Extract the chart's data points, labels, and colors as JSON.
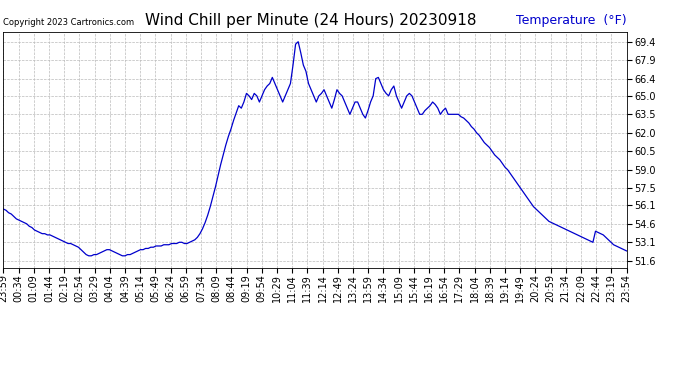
{
  "title": "Wind Chill per Minute (24 Hours) 20230918",
  "copyright": "Copyright 2023 Cartronics.com",
  "legend_label": "Temperature  (°F)",
  "yticks": [
    51.6,
    53.1,
    54.6,
    56.1,
    57.5,
    59.0,
    60.5,
    62.0,
    63.5,
    65.0,
    66.4,
    67.9,
    69.4
  ],
  "ylim": [
    51.0,
    70.2
  ],
  "line_color": "#0000cc",
  "background_color": "#ffffff",
  "grid_color": "#bbbbbb",
  "xtick_labels": [
    "23:59",
    "00:34",
    "01:09",
    "01:44",
    "02:19",
    "02:54",
    "03:29",
    "04:04",
    "04:39",
    "05:14",
    "05:49",
    "06:24",
    "06:59",
    "07:34",
    "08:09",
    "08:44",
    "09:19",
    "09:54",
    "10:29",
    "11:04",
    "11:39",
    "12:14",
    "12:49",
    "13:24",
    "13:59",
    "14:34",
    "15:09",
    "15:44",
    "16:19",
    "16:54",
    "17:29",
    "18:04",
    "18:39",
    "19:14",
    "19:49",
    "20:24",
    "20:59",
    "21:34",
    "22:09",
    "22:44",
    "23:19",
    "23:54"
  ],
  "data_y": [
    55.8,
    55.7,
    55.5,
    55.4,
    55.2,
    55.0,
    54.9,
    54.8,
    54.7,
    54.6,
    54.4,
    54.3,
    54.1,
    54.0,
    53.9,
    53.8,
    53.8,
    53.7,
    53.7,
    53.6,
    53.5,
    53.4,
    53.3,
    53.2,
    53.1,
    53.0,
    53.0,
    52.9,
    52.8,
    52.7,
    52.5,
    52.3,
    52.1,
    52.0,
    52.0,
    52.1,
    52.1,
    52.2,
    52.3,
    52.4,
    52.5,
    52.5,
    52.4,
    52.3,
    52.2,
    52.1,
    52.0,
    52.0,
    52.1,
    52.1,
    52.2,
    52.3,
    52.4,
    52.5,
    52.5,
    52.6,
    52.6,
    52.7,
    52.7,
    52.8,
    52.8,
    52.8,
    52.9,
    52.9,
    52.9,
    53.0,
    53.0,
    53.0,
    53.1,
    53.1,
    53.0,
    53.0,
    53.1,
    53.2,
    53.3,
    53.5,
    53.8,
    54.2,
    54.7,
    55.3,
    56.0,
    56.8,
    57.6,
    58.5,
    59.4,
    60.2,
    61.0,
    61.7,
    62.3,
    63.0,
    63.6,
    64.2,
    64.0,
    64.5,
    65.2,
    65.0,
    64.7,
    65.2,
    65.0,
    64.5,
    65.0,
    65.5,
    65.8,
    66.0,
    66.5,
    66.0,
    65.5,
    65.0,
    64.5,
    65.0,
    65.5,
    66.0,
    67.5,
    69.2,
    69.4,
    68.5,
    67.5,
    67.0,
    66.0,
    65.5,
    65.0,
    64.5,
    65.0,
    65.2,
    65.5,
    65.0,
    64.5,
    64.0,
    64.7,
    65.5,
    65.2,
    65.0,
    64.5,
    64.0,
    63.5,
    64.0,
    64.5,
    64.5,
    64.0,
    63.5,
    63.2,
    63.8,
    64.5,
    65.0,
    66.4,
    66.5,
    66.0,
    65.5,
    65.2,
    65.0,
    65.5,
    65.8,
    65.0,
    64.5,
    64.0,
    64.5,
    65.0,
    65.2,
    65.0,
    64.5,
    64.0,
    63.5,
    63.5,
    63.8,
    64.0,
    64.2,
    64.5,
    64.3,
    64.0,
    63.5,
    63.8,
    64.0,
    63.5,
    63.5,
    63.5,
    63.5,
    63.5,
    63.3,
    63.2,
    63.0,
    62.8,
    62.5,
    62.3,
    62.0,
    61.8,
    61.5,
    61.2,
    61.0,
    60.8,
    60.5,
    60.2,
    60.0,
    59.8,
    59.5,
    59.2,
    59.0,
    58.7,
    58.4,
    58.1,
    57.8,
    57.5,
    57.2,
    56.9,
    56.6,
    56.3,
    56.0,
    55.8,
    55.6,
    55.4,
    55.2,
    55.0,
    54.8,
    54.7,
    54.6,
    54.5,
    54.4,
    54.3,
    54.2,
    54.1,
    54.0,
    53.9,
    53.8,
    53.7,
    53.6,
    53.5,
    53.4,
    53.3,
    53.2,
    53.1,
    54.0,
    53.9,
    53.8,
    53.7,
    53.5,
    53.3,
    53.1,
    52.9,
    52.8,
    52.7,
    52.6,
    52.5,
    52.4
  ],
  "title_fontsize": 11,
  "tick_fontsize": 7,
  "copyright_fontsize": 6,
  "legend_fontsize": 9
}
